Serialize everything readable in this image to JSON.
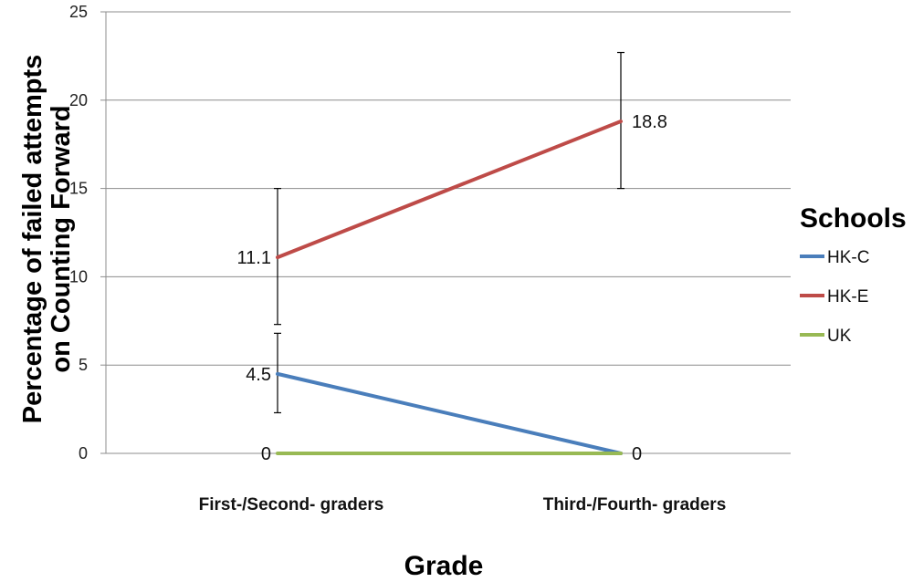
{
  "chart_data": {
    "type": "line",
    "categories": [
      "First-/Second- graders",
      "Third-/Fourth- graders"
    ],
    "xlabel": "Grade",
    "ylabel_lines": [
      "Percentage of failed attempts",
      "on Counting Forward"
    ],
    "ylim": [
      0,
      25
    ],
    "yticks": [
      0,
      5,
      10,
      15,
      20,
      25
    ],
    "grid": true,
    "legend": {
      "title": "Schools",
      "position": "right"
    },
    "series": [
      {
        "name": "HK-C",
        "color": "#4A7EBB",
        "values": [
          4.5,
          0
        ],
        "labels": [
          "4.5",
          "0"
        ],
        "error": [
          [
            2.3,
            6.8
          ],
          null
        ]
      },
      {
        "name": "HK-E",
        "color": "#BE4B48",
        "values": [
          11.1,
          18.8
        ],
        "labels": [
          "11.1",
          "18.8"
        ],
        "error": [
          [
            7.3,
            15.0
          ],
          [
            15.0,
            22.7
          ]
        ]
      },
      {
        "name": "UK",
        "color": "#98B954",
        "values": [
          0,
          0
        ],
        "labels": [
          "0",
          "0"
        ],
        "error": [
          null,
          null
        ]
      }
    ]
  }
}
